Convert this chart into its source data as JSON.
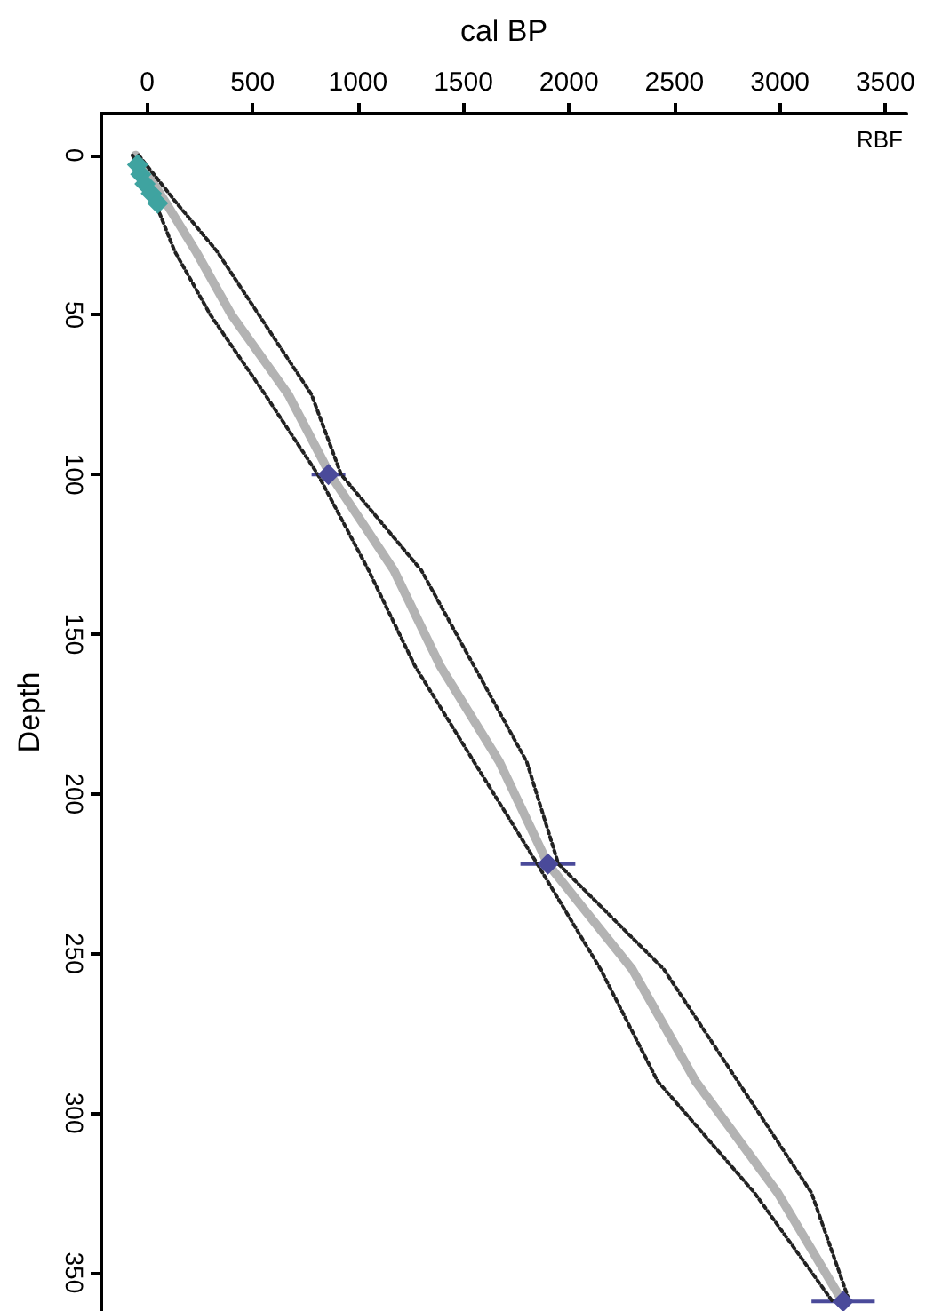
{
  "chart_data": {
    "type": "line",
    "xlabel": "cal BP",
    "ylabel": "Depth",
    "annotations": [
      "RBF"
    ],
    "xlim": [
      -217,
      3600
    ],
    "xticks": [
      0,
      500,
      1000,
      1500,
      2000,
      2500,
      3000,
      3500
    ],
    "ylim": [
      362,
      -13
    ],
    "yticks": [
      0,
      50,
      100,
      150,
      200,
      250,
      300,
      350
    ],
    "grid": false,
    "series": [
      {
        "color": "#9a9a9a",
        "line_style": "solid",
        "x": [
          -55,
          90,
          230,
          400,
          670,
          868,
          1170,
          1390,
          1670,
          1900,
          2300,
          2600,
          2990,
          3297
        ],
        "values": [
          0,
          15,
          30,
          50,
          75,
          100,
          130,
          160,
          190,
          222,
          255,
          290,
          325,
          359
        ]
      },
      {
        "color": "#222222",
        "line_style": "dotted",
        "x": [
          -70,
          40,
          130,
          300,
          560,
          810,
          1050,
          1270,
          1550,
          1850,
          2150,
          2420,
          2880,
          3250
        ],
        "values": [
          0,
          15,
          30,
          50,
          75,
          100,
          130,
          160,
          190,
          222,
          255,
          290,
          325,
          359
        ]
      },
      {
        "color": "#222222",
        "line_style": "dotted",
        "x": [
          -40,
          140,
          330,
          530,
          780,
          920,
          1300,
          1550,
          1800,
          1950,
          2450,
          2800,
          3150,
          3330
        ],
        "values": [
          0,
          15,
          30,
          50,
          75,
          100,
          130,
          160,
          190,
          222,
          255,
          290,
          325,
          359
        ]
      },
      {
        "type": "scatter",
        "color": "#3fa3a0",
        "marker": "diamond",
        "x": [
          -45,
          -30,
          -10,
          20,
          50
        ],
        "values": [
          3,
          6,
          9,
          12,
          15
        ],
        "xerrors": [
          30,
          30,
          30,
          30,
          30
        ]
      },
      {
        "type": "scatter",
        "color": "#4a4a9a",
        "marker": "diamond",
        "x": [
          860,
          1900,
          3300
        ],
        "values": [
          100,
          222,
          359
        ],
        "xerrors": [
          80,
          130,
          150
        ]
      }
    ]
  }
}
